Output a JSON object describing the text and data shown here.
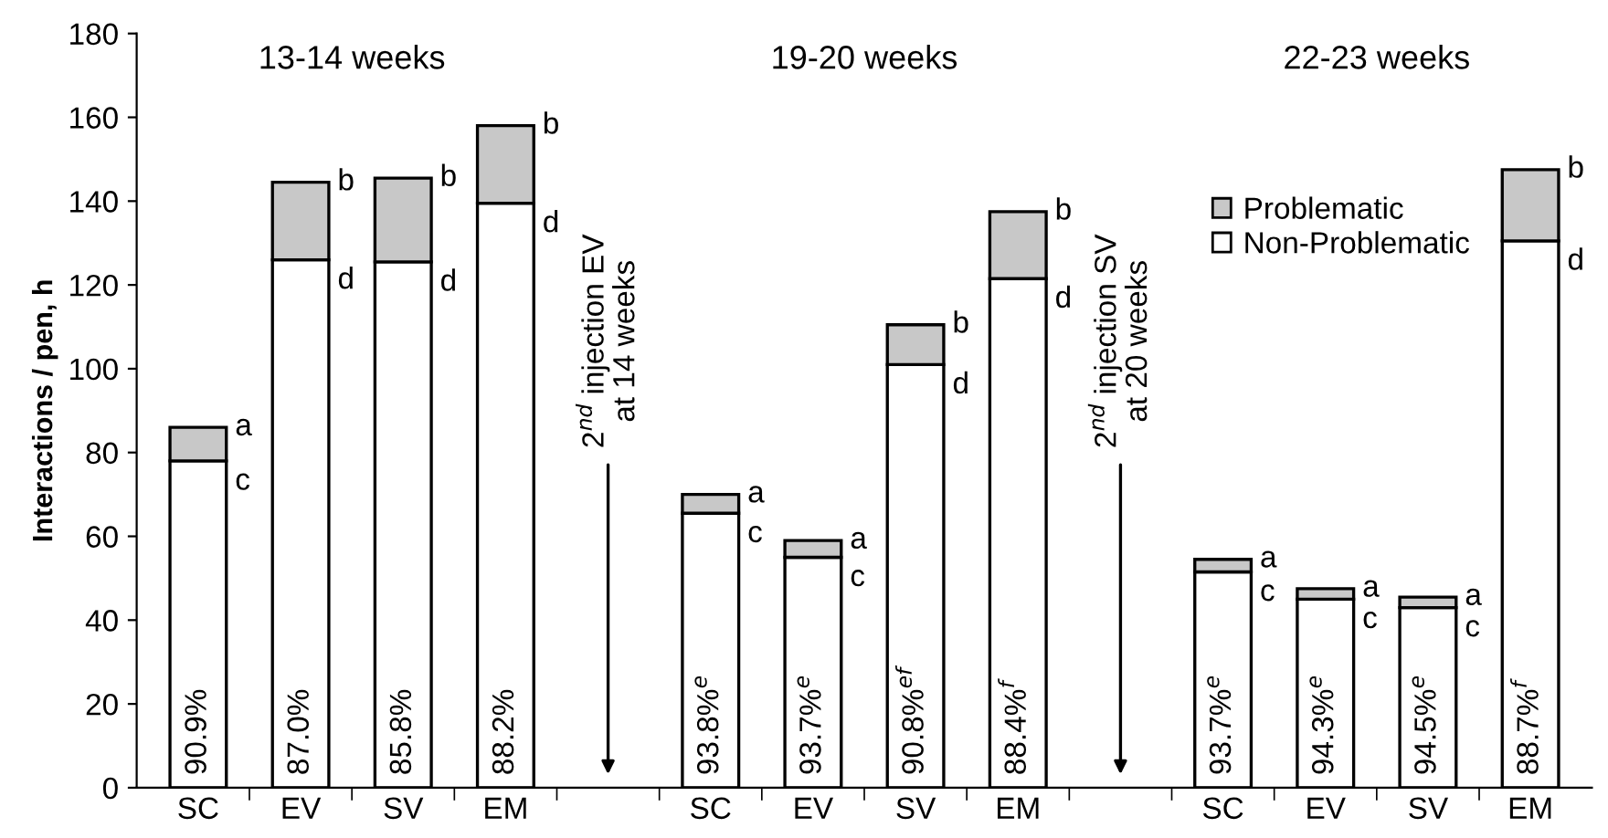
{
  "chart_data": {
    "type": "bar",
    "stacked": true,
    "ylabel": "Interactions / pen, h",
    "categories": [
      "SC",
      "EV",
      "SV",
      "EM",
      null,
      "SC",
      "EV",
      "SV",
      "EM",
      null,
      "SC",
      "EV",
      "SV",
      "EM"
    ],
    "series": [
      {
        "name": "Non-Problematic",
        "color": "#ffffff",
        "values": [
          78,
          126,
          125.5,
          139.5,
          null,
          65.5,
          55,
          101,
          121.5,
          null,
          51.5,
          45,
          43,
          130.5
        ]
      },
      {
        "name": "Problematic",
        "color": "#c8c8c8",
        "values": [
          8,
          18.5,
          20,
          18.5,
          null,
          4.5,
          4,
          9.5,
          16,
          null,
          3,
          2.5,
          2.5,
          17
        ]
      }
    ],
    "ylim": [
      0,
      180
    ],
    "yticks": [
      0,
      20,
      40,
      60,
      80,
      100,
      120,
      140,
      160,
      180
    ],
    "grid": false,
    "legend": "top right",
    "annotations": [
      "13-14 weeks",
      "19-20 weeks",
      "22-23 weeks",
      "2$^{nd}$ injection EV\nat 14 weeks",
      "2$^{nd}$ injection SV\nat 20 weeks",
      "90.9%",
      "a",
      "c",
      "87.0%",
      "b",
      "d",
      "85.8%",
      "b",
      "d",
      "88.2%",
      "b",
      "d",
      "93.8%$^{e}$",
      "a",
      "c",
      "93.7%$^{e}$",
      "a",
      "c",
      "90.8%$^{ef}$",
      "b",
      "d",
      "88.4%$^{f}$",
      "b",
      "d",
      "93.7%$^{e}$",
      "a",
      "c",
      "94.3%$^{e}$",
      "a",
      "c",
      "94.5%$^{e}$",
      "a",
      "c",
      "88.7%$^{f}$",
      "b",
      "d"
    ]
  }
}
